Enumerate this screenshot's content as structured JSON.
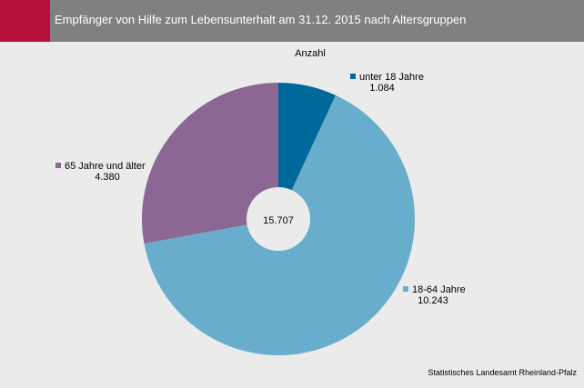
{
  "header": {
    "title": "Empfänger von Hilfe zum Lebensunterhalt am 31.12. 2015 nach Altersgruppen"
  },
  "colors": {
    "header_bg": "#808080",
    "accent": "#b50f3c",
    "background": "#ebebeb"
  },
  "chart_data": {
    "type": "pie",
    "subtitle": "Anzahl",
    "total": "15.707",
    "slices": [
      {
        "label": "unter 18 Jahre",
        "value": 1084,
        "value_label": "1.084",
        "color": "#00689b"
      },
      {
        "label": "18-64 Jahre",
        "value": 10243,
        "value_label": "10.243",
        "color": "#68aecc"
      },
      {
        "label": "65 Jahre und älter",
        "value": 4380,
        "value_label": "4.380",
        "color": "#8b6794"
      }
    ],
    "donut": true,
    "legend": "labels next to slices"
  },
  "footer": {
    "source": "Statistisches Landesamt Rheinland-Pfalz"
  }
}
